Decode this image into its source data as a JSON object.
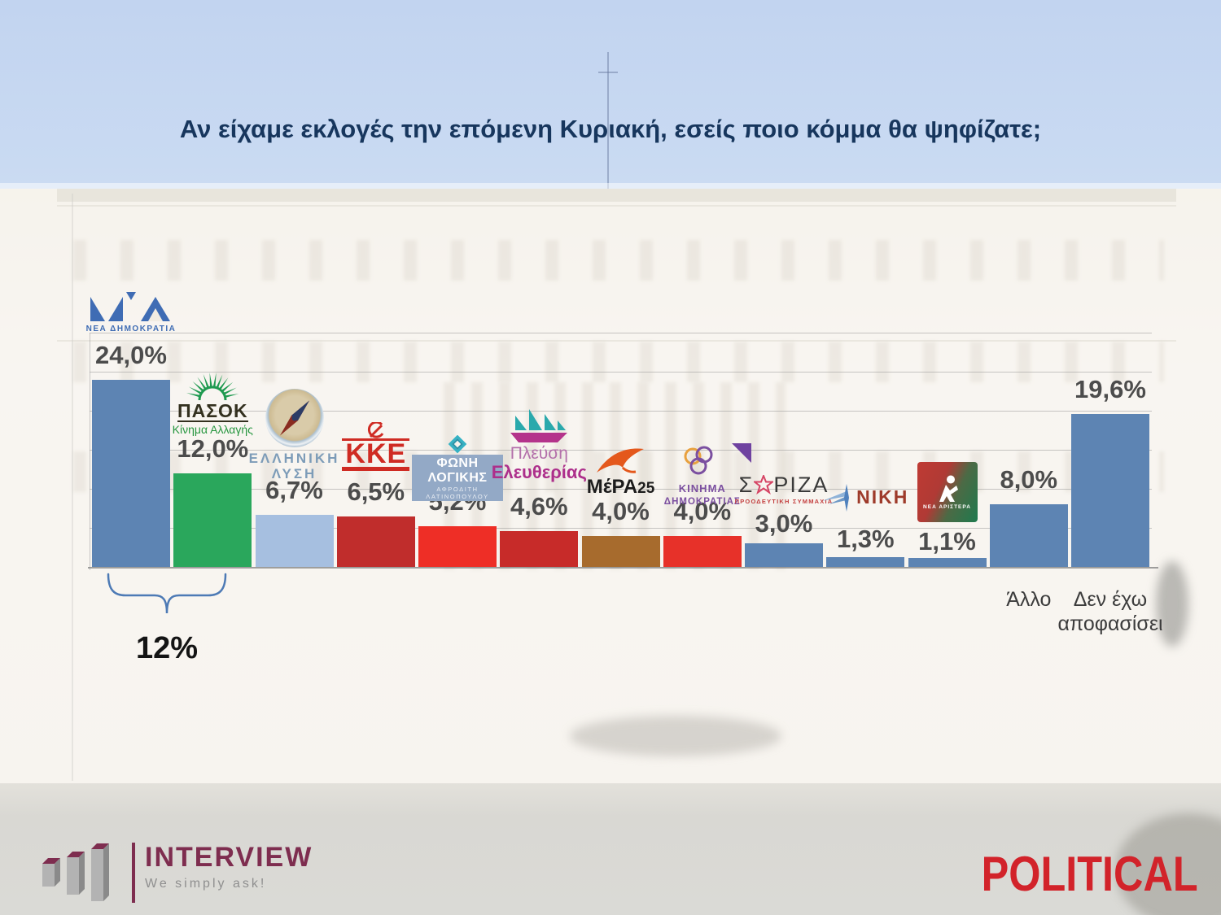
{
  "title": "Αν είχαμε εκλογές την επόμενη Κυριακή, εσείς ποιο κόμμα θα ψηφίζατε;",
  "chart_data": {
    "type": "bar",
    "categories": [
      "ΝΕΑ ΔΗΜΟΚΡΑΤΙΑ",
      "ΠΑΣΟΚ",
      "ΕΛΛΗΝΙΚΗ ΛΥΣΗ",
      "ΚΚΕ",
      "ΦΩΝΗ ΛΟΓΙΚΗΣ",
      "ΠΛΕΥΣΗ ΕΛΕΥΘΕΡΙΑΣ",
      "ΜέΡΑ25",
      "ΚΙΝΗΜΑ ΔΗΜΟΚΡΑΤΙΑΣ",
      "ΣΥΡΙΖΑ",
      "ΝΙΚΗ",
      "ΝΕΑ ΑΡΙΣΤΕΡΑ",
      "Άλλο",
      "Δεν έχω αποφασίσει"
    ],
    "values": [
      24.0,
      12.0,
      6.7,
      6.5,
      5.2,
      4.6,
      4.0,
      4.0,
      3.0,
      1.3,
      1.1,
      8.0,
      19.6
    ],
    "ylim": [
      0,
      30
    ],
    "grid_interval_pct": 5,
    "legend": "none",
    "bars": [
      {
        "party": "ΝΕΑ ΔΗΜΟΚΡΑΤΙΑ",
        "value": 24.0,
        "value_label": "24,0%",
        "color": "#5d84b3",
        "logo": {
          "name": "nd-logo",
          "text": "ΝΕΑ ΔΗΜΟΚΡΑΤΙΑ"
        }
      },
      {
        "party": "ΠΑΣΟΚ",
        "value": 12.0,
        "value_label": "12,0%",
        "color": "#2aa75c",
        "logo": {
          "name": "pasok-logo",
          "text": "ΠΑΣΟΚ",
          "subtext": "Κίνημα Αλλαγής"
        }
      },
      {
        "party": "ΕΛΛΗΝΙΚΗ ΛΥΣΗ",
        "value": 6.7,
        "value_label": "6,7%",
        "color": "#a6bfe0",
        "logo": {
          "name": "elliniki-lysi-logo",
          "text": "ΕΛΛΗΝΙΚΗ",
          "subtext": "ΛΥΣΗ"
        }
      },
      {
        "party": "ΚΚΕ",
        "value": 6.5,
        "value_label": "6,5%",
        "color": "#c02d2c",
        "logo": {
          "name": "kke-logo",
          "text": "ΚΚΕ"
        }
      },
      {
        "party": "ΦΩΝΗ ΛΟΓΙΚΗΣ",
        "value": 5.2,
        "value_label": "5,2%",
        "color": "#ee2e26",
        "logo": {
          "name": "foni-logikis-logo",
          "text": "ΦΩΝΗ ΛΟΓΙΚΗΣ",
          "subtext": "ΑΦΡΟΔΙΤΗ ΛΑΤΙΝΟΠΟΥΛΟΥ"
        }
      },
      {
        "party": "ΠΛΕΥΣΗ ΕΛΕΥΘΕΡΙΑΣ",
        "value": 4.6,
        "value_label": "4,6%",
        "color": "#c72b29",
        "logo": {
          "name": "plefsi-eleftherias-logo",
          "text": "Πλεύση",
          "subtext": "Ελευθερίας"
        }
      },
      {
        "party": "ΜέΡΑ25",
        "value": 4.0,
        "value_label": "4,0%",
        "color": "#a76b2d",
        "logo": {
          "name": "mera25-logo",
          "text": "ΜέΡΑ25"
        }
      },
      {
        "party": "ΚΙΝΗΜΑ ΔΗΜΟΚΡΑΤΙΑΣ",
        "value": 4.0,
        "value_label": "4,0%",
        "color": "#e73129",
        "logo": {
          "name": "kinima-dimokratias-logo",
          "text": "ΚΙΝΗΜΑ",
          "subtext": "ΔΗΜΟΚΡΑΤΙΑΣ"
        }
      },
      {
        "party": "ΣΥΡΙΖΑ",
        "value": 3.0,
        "value_label": "3,0%",
        "color": "#5d84b3",
        "logo": {
          "name": "syriza-logo",
          "text": "ΣΥΡΙΖΑ",
          "subtext": "ΠΡΟΟΔΕΥΤΙΚΗ ΣΥΜΜΑΧΙΑ"
        }
      },
      {
        "party": "ΝΙΚΗ",
        "value": 1.3,
        "value_label": "1,3%",
        "color": "#5d84b3",
        "logo": {
          "name": "niki-logo",
          "text": "ΝΙΚΗ"
        }
      },
      {
        "party": "ΝΕΑ ΑΡΙΣΤΕΡΑ",
        "value": 1.1,
        "value_label": "1,1%",
        "color": "#5d84b3",
        "logo": {
          "name": "nea-aristera-logo",
          "text": "ΝΕΑ ΑΡΙΣΤΕΡΑ"
        }
      },
      {
        "party": "Άλλο",
        "value": 8.0,
        "value_label": "8,0%",
        "color": "#5d84b3",
        "axis_label": "Άλλο"
      },
      {
        "party": "Δεν έχω αποφασίσει",
        "value": 19.6,
        "value_label": "19,6%",
        "color": "#5d84b3",
        "axis_label": "Δεν έχω αποφασίσει"
      }
    ],
    "bracket": {
      "spans": [
        "ΝΕΑ ΔΗΜΟΚΡΑΤΙΑ",
        "ΠΑΣΟΚ"
      ],
      "label": "12%"
    }
  },
  "footer": {
    "interview": {
      "name": "INTERVIEW",
      "tagline": "We simply ask!"
    },
    "political": {
      "name": "POLITICAL"
    }
  }
}
